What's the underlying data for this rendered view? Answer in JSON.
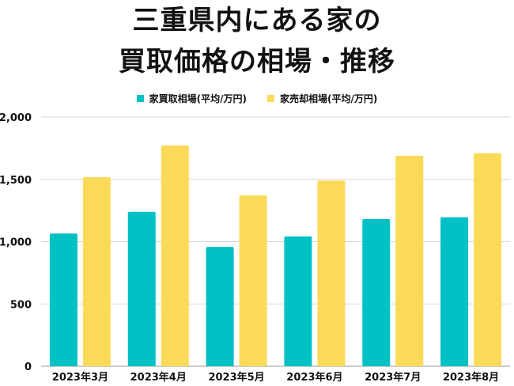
{
  "chart_data": {
    "type": "bar",
    "title": "三重県内にある家の買取価格の相場・推移",
    "title_lines": [
      "三重県内にある家の",
      "買取価格の相場・推移"
    ],
    "categories": [
      "2023年3月",
      "2023年4月",
      "2023年5月",
      "2023年6月",
      "2023年7月",
      "2023年8月"
    ],
    "series": [
      {
        "name": "家買取相場(平均/万円)",
        "color": "#00c1c4",
        "values": [
          1065,
          1240,
          958,
          1042,
          1182,
          1196
        ]
      },
      {
        "name": "家売却相場(平均/万円)",
        "color": "#fcda59",
        "values": [
          1518,
          1772,
          1372,
          1490,
          1690,
          1710
        ]
      }
    ],
    "ylim": [
      0,
      2000
    ],
    "yticks": [
      0,
      500,
      1000,
      1500,
      2000
    ],
    "ytick_labels": [
      "0",
      "500",
      "1,000",
      "1,500",
      "2,000"
    ],
    "xlabel": "",
    "ylabel": "",
    "grid": true,
    "legend_position": "top-center"
  }
}
